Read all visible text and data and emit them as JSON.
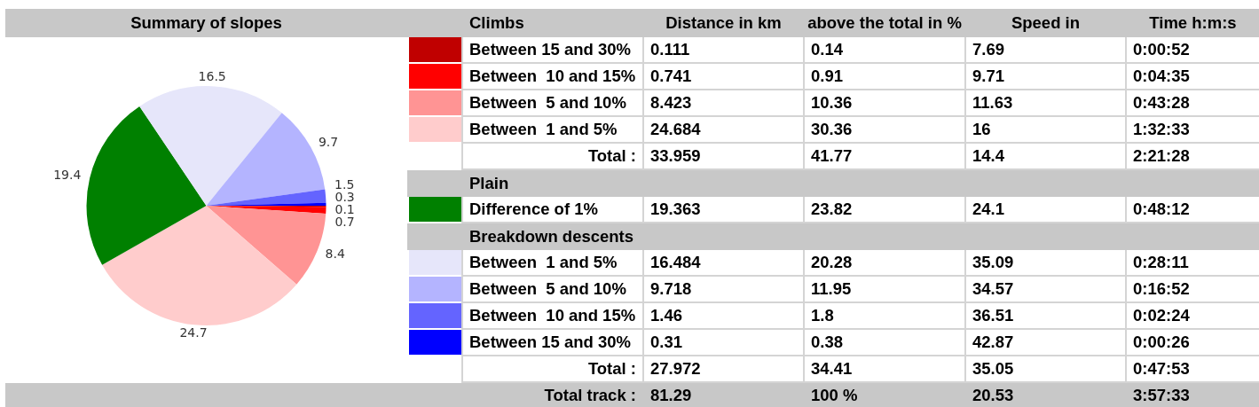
{
  "chart_data": {
    "type": "pie",
    "title": "Summary of slopes",
    "categories": [
      "Between 15 and 30%",
      "Between  10 and 15%",
      "Between  5 and 10%",
      "Between  1 and 5%",
      "Difference of 1%",
      "Between  1 and 5%",
      "Between  5 and 10%",
      "Between  10 and 15%",
      "Between 15 and 30%"
    ],
    "values": [
      0.111,
      0.741,
      8.423,
      24.684,
      19.363,
      16.484,
      9.718,
      1.46,
      0.31
    ],
    "colors": [
      "#c00000",
      "#ff0000",
      "#ff9494",
      "#ffcccc",
      "#008000",
      "#e6e6fa",
      "#b4b4ff",
      "#6464ff",
      "#0000ff"
    ],
    "value_labels": [
      "0.1",
      "0.7",
      "8.4",
      "24.7",
      "19.4",
      "16.5",
      "9.7",
      "1.5",
      "0.3"
    ],
    "legend": "right",
    "annotations": [
      "Climbs",
      "Distance in km",
      "above the total in %",
      "Speed in",
      "Time h:m:s",
      "0.111",
      "0.14",
      "7.69",
      "0:00:52",
      "0.741",
      "0.91",
      "9.71",
      "0:04:35",
      "8.423",
      "10.36",
      "11.63",
      "0:43:28",
      "24.684",
      "30.36",
      "16",
      "1:32:33",
      "Total :",
      "33.959",
      "41.77",
      "14.4",
      "2:21:28",
      "Plain",
      "19.363",
      "23.82",
      "24.1",
      "0:48:12",
      "Breakdown descents",
      "16.484",
      "20.28",
      "35.09",
      "0:28:11",
      "9.718",
      "11.95",
      "34.57",
      "0:16:52",
      "1.46",
      "1.8",
      "36.51",
      "0:02:24",
      "0.31",
      "0.38",
      "42.87",
      "0:00:26",
      "Total :",
      "27.972",
      "34.41",
      "35.05",
      "0:47:53",
      "Total track :",
      "81.29",
      "100 %",
      "20.53",
      "3:57:33"
    ]
  }
}
